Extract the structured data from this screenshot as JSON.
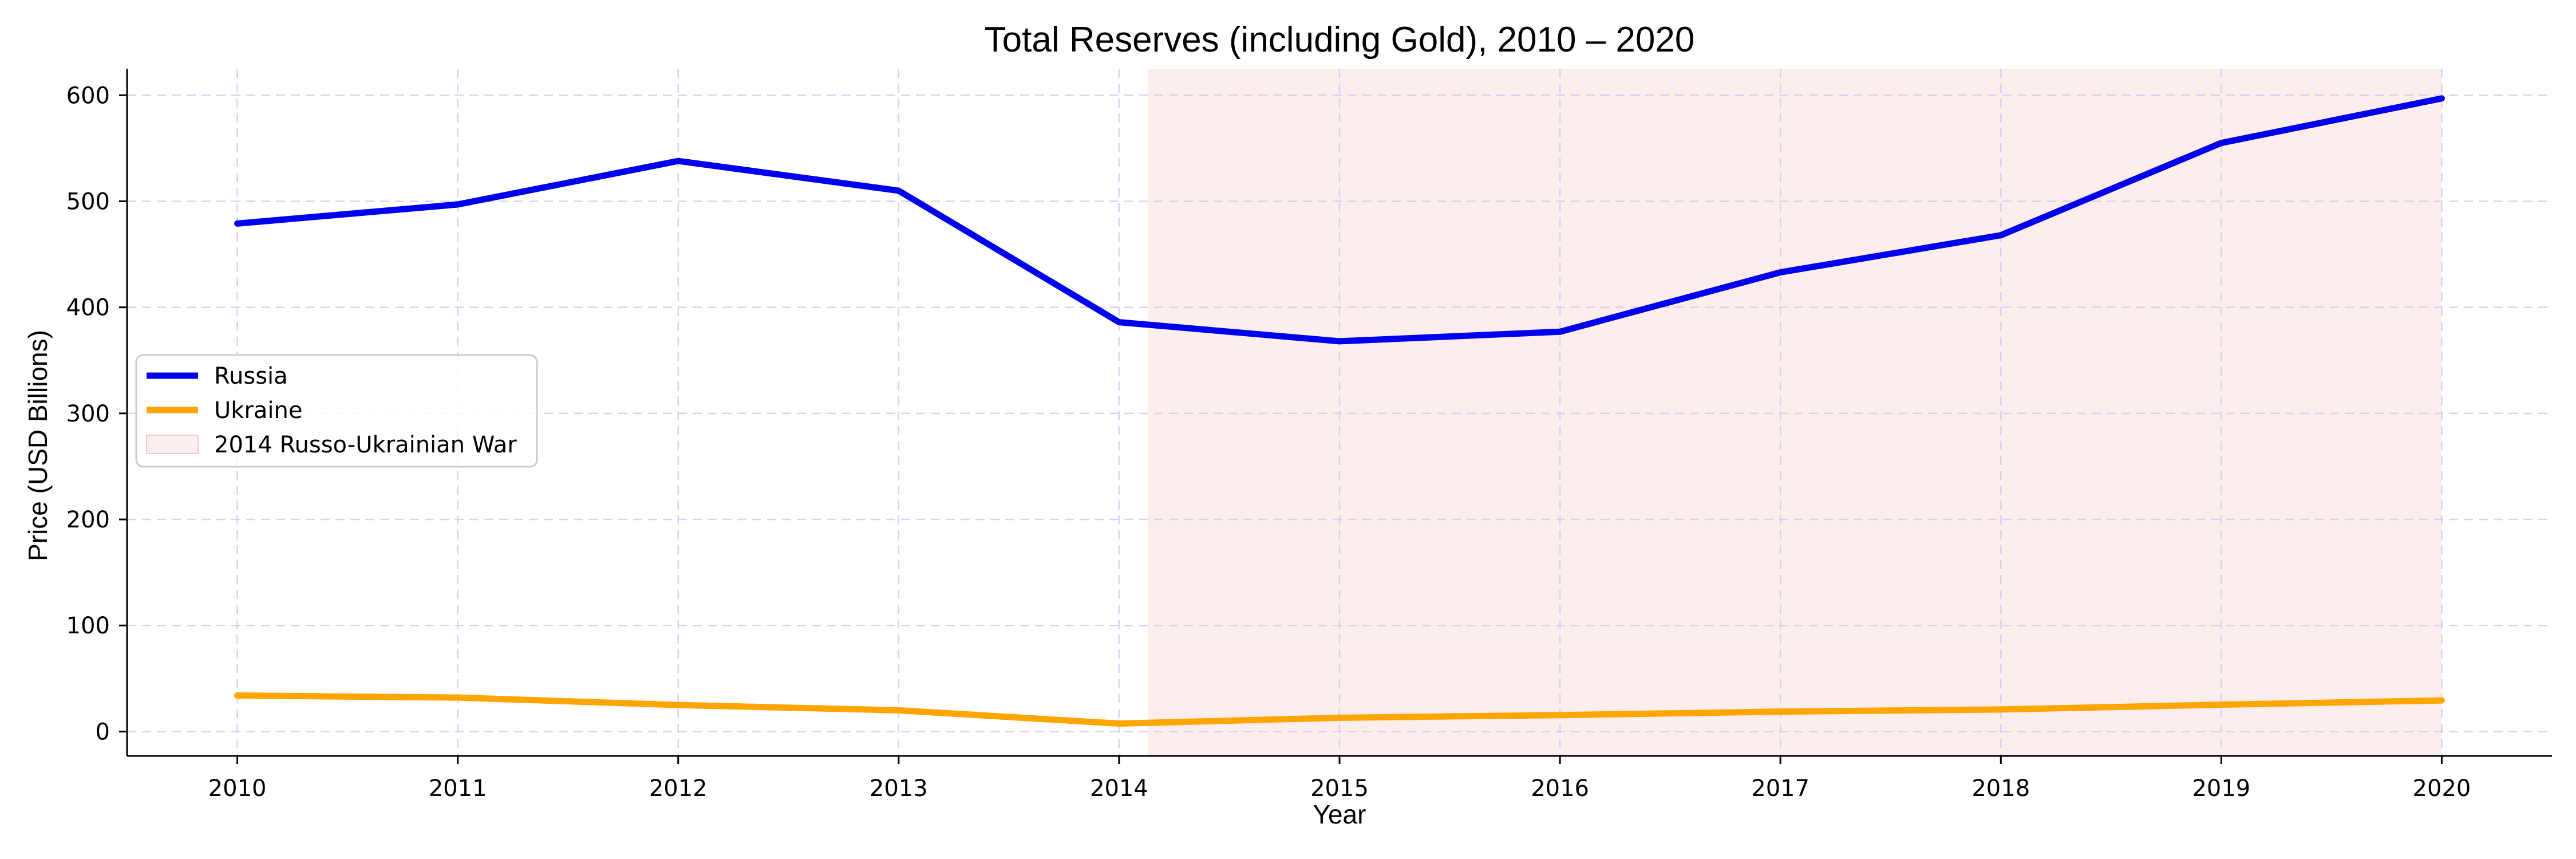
{
  "chart_data": {
    "type": "line",
    "title": "Total Reserves (including Gold), 2010 – 2020",
    "xlabel": "Year",
    "ylabel": "Price (USD Billions)",
    "x": [
      2010,
      2011,
      2012,
      2013,
      2014,
      2015,
      2016,
      2017,
      2018,
      2019,
      2020
    ],
    "xlim": [
      2009.5,
      2020.5
    ],
    "ylim": [
      -23,
      625
    ],
    "yticks": [
      0,
      100,
      200,
      300,
      400,
      500,
      600
    ],
    "grid": true,
    "legend_position": "center-left",
    "series": [
      {
        "name": "Russia",
        "color": "#0000ee",
        "values": [
          479,
          497,
          538,
          510,
          386,
          368,
          377,
          433,
          468,
          555,
          597
        ]
      },
      {
        "name": "Ukraine",
        "color": "#ffa500",
        "values": [
          34,
          32,
          25,
          20,
          7.5,
          13,
          15.5,
          18.8,
          20.8,
          25.3,
          29.3
        ]
      }
    ],
    "shaded_region": {
      "label": "2014 Russo-Ukrainian War",
      "x_start": 2014.13,
      "x_end": 2020,
      "color": "#fdeeee"
    }
  }
}
